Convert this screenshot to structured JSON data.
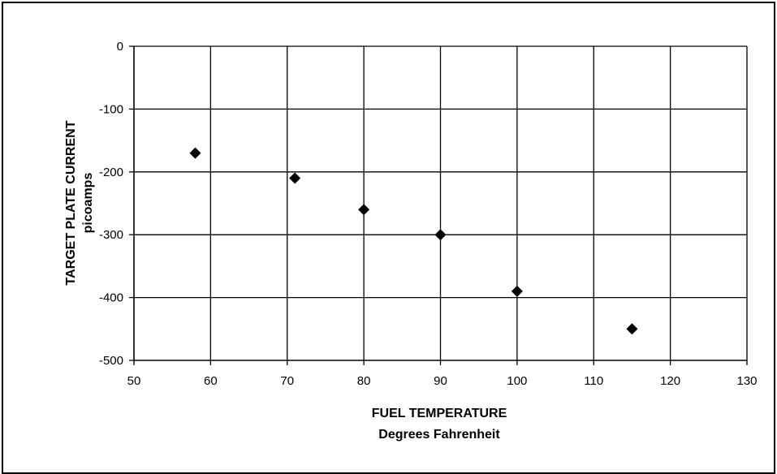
{
  "chart_data": {
    "type": "scatter",
    "title": "",
    "xlabel": "FUEL TEMPERATURE",
    "xlabel_units": "Degrees Fahrenheit",
    "ylabel": "TARGET PLATE CURRENT",
    "ylabel_units": "picoamps",
    "xlim": [
      50,
      130
    ],
    "ylim": [
      -500,
      0
    ],
    "x_ticks": [
      50,
      60,
      70,
      80,
      90,
      100,
      110,
      120,
      130
    ],
    "y_ticks": [
      0,
      -100,
      -200,
      -300,
      -400,
      -500
    ],
    "grid": true,
    "legend": "none",
    "marker": "diamond",
    "marker_color": "#000000",
    "series": [
      {
        "x": [
          58,
          71,
          80,
          90,
          100,
          115
        ],
        "y": [
          -170,
          -210,
          -260,
          -300,
          -390,
          -450
        ]
      }
    ]
  }
}
